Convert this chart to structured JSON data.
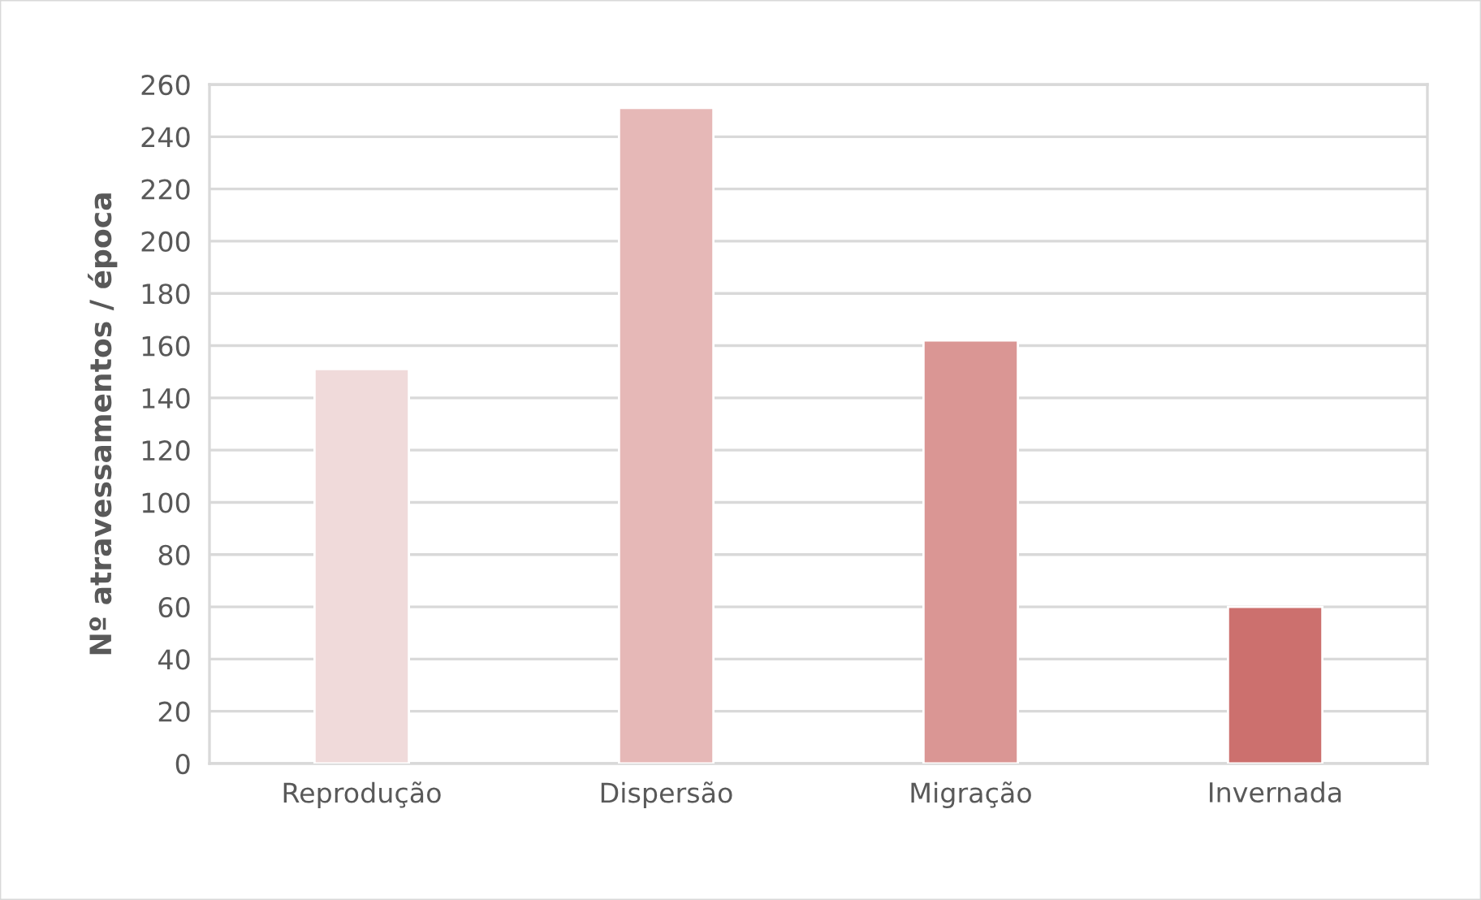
{
  "chart_data": {
    "type": "bar",
    "ylabel": "Nº atravessamentos / época",
    "categories": [
      "Reprodução",
      "Dispersão",
      "Migração",
      "Invernada"
    ],
    "values": [
      151,
      251,
      162,
      60
    ],
    "colors": [
      "#f0dada",
      "#e6b8b7",
      "#da9694",
      "#cc706e"
    ],
    "ylim": [
      0,
      260
    ],
    "yticks": [
      0,
      20,
      40,
      60,
      80,
      100,
      120,
      140,
      160,
      180,
      200,
      220,
      240,
      260
    ],
    "grid": "y",
    "legend": false
  }
}
